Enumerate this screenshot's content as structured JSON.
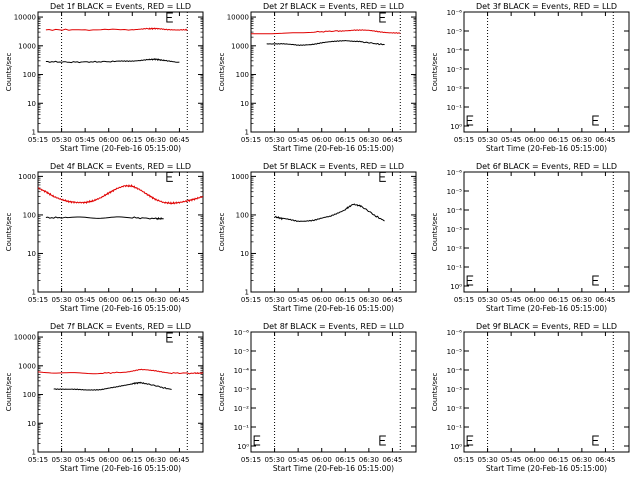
{
  "chart_data": [
    {
      "type": "line",
      "title": "Det 1f BLACK = Events, RED = LLD",
      "xlabel": "Start Time (20-Feb-16 05:15:00)",
      "ylabel": "Counts/sec",
      "x_tick_labels": [
        "05:15",
        "05:30",
        "05:45",
        "06:00",
        "06:15",
        "06:30",
        "06:45"
      ],
      "y_tick_labels": [
        "1",
        "10",
        "100",
        "1000",
        "10000"
      ],
      "ylim": [
        1,
        15000
      ],
      "log_y": true,
      "dotted_verticals_min": [
        15,
        95
      ],
      "markers": [
        {
          "x_min": 82,
          "y": 10000
        }
      ],
      "series": [
        {
          "color": "#e00000",
          "x_min": [
            5,
            30,
            60,
            70,
            75,
            80,
            90,
            95
          ],
          "y": [
            3600,
            3600,
            3700,
            3900,
            4000,
            3800,
            3600,
            3600
          ]
        },
        {
          "color": "#000000",
          "x_min": [
            5,
            20,
            35,
            50,
            60,
            70,
            75,
            80,
            90
          ],
          "y": [
            280,
            270,
            275,
            285,
            300,
            330,
            340,
            310,
            270
          ]
        }
      ]
    },
    {
      "type": "line",
      "title": "Det 2f BLACK = Events, RED = LLD",
      "xlabel": "Start Time (20-Feb-16 05:15:00)",
      "ylabel": "Counts/sec",
      "x_tick_labels": [
        "05:15",
        "05:30",
        "05:45",
        "06:00",
        "06:15",
        "06:30",
        "06:45"
      ],
      "y_tick_labels": [
        "1",
        "10",
        "100",
        "1000",
        "10000"
      ],
      "ylim": [
        1,
        15000
      ],
      "log_y": true,
      "dotted_verticals_min": [
        15,
        95
      ],
      "markers": [
        {
          "x_min": 82,
          "y": 10000
        }
      ],
      "series": [
        {
          "color": "#e00000",
          "x_min": [
            0,
            20,
            40,
            55,
            65,
            75,
            85,
            95
          ],
          "y": [
            2600,
            2700,
            3000,
            3300,
            3500,
            3400,
            3000,
            2700
          ]
        },
        {
          "color": "#000000",
          "x_min": [
            10,
            20,
            30,
            40,
            50,
            60,
            70,
            78,
            85
          ],
          "y": [
            1200,
            1150,
            1050,
            1150,
            1350,
            1550,
            1400,
            1200,
            1100
          ]
        }
      ]
    },
    {
      "type": "line",
      "title": "Det 3f BLACK = Events, RED = LLD",
      "xlabel": "Start Time (20-Feb-16 05:15:00)",
      "ylabel": "Counts/sec",
      "x_tick_labels": [
        "05:15",
        "05:30",
        "05:45",
        "06:00",
        "06:15",
        "06:30",
        "06:45"
      ],
      "y_tick_labels": [
        "10⁰",
        "10⁻¹",
        "10⁻²",
        "10⁻³",
        "10⁻⁴",
        "10⁻⁵",
        "10⁻⁶"
      ],
      "log_y": true,
      "dotted_verticals_min": [
        15,
        95
      ],
      "markers": [
        {
          "x_min": 2,
          "y": 0
        },
        {
          "x_min": 82,
          "y": 0
        }
      ],
      "series": []
    },
    {
      "type": "line",
      "title": "Det 4f BLACK = Events, RED = LLD",
      "xlabel": "Start Time (20-Feb-16 05:15:00)",
      "ylabel": "Counts/sec",
      "x_tick_labels": [
        "05:15",
        "05:30",
        "05:45",
        "06:00",
        "06:15",
        "06:30",
        "06:45"
      ],
      "y_tick_labels": [
        "1",
        "10",
        "100",
        "1000"
      ],
      "ylim": [
        1,
        1300
      ],
      "log_y": true,
      "dotted_verticals_min": [
        15,
        95
      ],
      "markers": [
        {
          "x_min": 82,
          "y": 1000
        }
      ],
      "series": [
        {
          "color": "#e00000",
          "x_min": [
            0,
            5,
            10,
            15,
            20,
            25,
            30,
            35,
            40,
            45,
            50,
            55,
            60,
            65,
            70,
            75,
            80,
            85,
            90,
            95,
            100,
            105
          ],
          "y": [
            500,
            400,
            300,
            250,
            220,
            210,
            210,
            230,
            280,
            370,
            480,
            570,
            560,
            450,
            330,
            250,
            210,
            200,
            210,
            230,
            260,
            300
          ]
        },
        {
          "color": "#000000",
          "x_min": [
            5,
            20,
            40,
            60,
            75,
            80
          ],
          "y": [
            85,
            85,
            85,
            85,
            80,
            80
          ]
        }
      ]
    },
    {
      "type": "line",
      "title": "Det 5f BLACK = Events, RED = LLD",
      "xlabel": "Start Time (20-Feb-16 05:15:00)",
      "ylabel": "Counts/sec",
      "x_tick_labels": [
        "05:15",
        "05:30",
        "05:45",
        "06:00",
        "06:15",
        "06:30",
        "06:45"
      ],
      "y_tick_labels": [
        "1",
        "10",
        "100",
        "1000"
      ],
      "ylim": [
        1,
        1300
      ],
      "log_y": true,
      "dotted_verticals_min": [
        15,
        95
      ],
      "markers": [
        {
          "x_min": 82,
          "y": 1000
        }
      ],
      "series": [
        {
          "color": "#000000",
          "x_min": [
            15,
            20,
            30,
            40,
            50,
            60,
            65,
            70,
            78,
            85
          ],
          "y": [
            90,
            80,
            70,
            72,
            90,
            140,
            190,
            170,
            100,
            70
          ]
        }
      ]
    },
    {
      "type": "line",
      "title": "Det 6f BLACK = Events, RED = LLD",
      "xlabel": "Start Time (20-Feb-16 05:15:00)",
      "ylabel": "Counts/sec",
      "x_tick_labels": [
        "05:15",
        "05:30",
        "05:45",
        "06:00",
        "06:15",
        "06:30",
        "06:45"
      ],
      "y_tick_labels": [
        "10⁰",
        "10⁻¹",
        "10⁻²",
        "10⁻³",
        "10⁻⁴",
        "10⁻⁵",
        "10⁻⁶"
      ],
      "log_y": true,
      "dotted_verticals_min": [
        15,
        95
      ],
      "markers": [
        {
          "x_min": 2,
          "y": 0
        },
        {
          "x_min": 82,
          "y": 0
        }
      ],
      "series": []
    },
    {
      "type": "line",
      "title": "Det 7f BLACK = Events, RED = LLD",
      "xlabel": "Start Time (20-Feb-16 05:15:00)",
      "ylabel": "Counts/sec",
      "x_tick_labels": [
        "05:15",
        "05:30",
        "05:45",
        "06:00",
        "06:15",
        "06:30",
        "06:45"
      ],
      "y_tick_labels": [
        "1",
        "10",
        "100",
        "1000",
        "10000"
      ],
      "ylim": [
        1,
        15000
      ],
      "log_y": true,
      "dotted_verticals_min": [
        15,
        95
      ],
      "markers": [
        {
          "x_min": 82,
          "y": 10000
        }
      ],
      "series": [
        {
          "color": "#e00000",
          "x_min": [
            0,
            20,
            40,
            55,
            65,
            75,
            85,
            100,
            105
          ],
          "y": [
            600,
            560,
            550,
            600,
            750,
            650,
            560,
            550,
            560
          ]
        },
        {
          "color": "#000000",
          "x_min": [
            10,
            20,
            30,
            40,
            50,
            60,
            65,
            70,
            78,
            85
          ],
          "y": [
            160,
            150,
            145,
            150,
            180,
            240,
            260,
            230,
            180,
            150
          ]
        }
      ]
    },
    {
      "type": "line",
      "title": "Det 8f BLACK = Events, RED = LLD",
      "xlabel": "Start Time (20-Feb-16 05:15:00)",
      "ylabel": "Counts/sec",
      "x_tick_labels": [
        "05:15",
        "05:30",
        "05:45",
        "06:00",
        "06:15",
        "06:30",
        "06:45"
      ],
      "y_tick_labels": [
        "10⁰",
        "10⁻¹",
        "10⁻²",
        "10⁻³",
        "10⁻⁴",
        "10⁻⁵",
        "10⁻⁶"
      ],
      "log_y": true,
      "dotted_verticals_min": [
        15,
        95
      ],
      "markers": [
        {
          "x_min": 2,
          "y": 0
        },
        {
          "x_min": 82,
          "y": 0
        }
      ],
      "series": []
    },
    {
      "type": "line",
      "title": "Det 9f BLACK = Events, RED = LLD",
      "xlabel": "Start Time (20-Feb-16 05:15:00)",
      "ylabel": "Counts/sec",
      "x_tick_labels": [
        "05:15",
        "05:30",
        "05:45",
        "06:00",
        "06:15",
        "06:30",
        "06:45"
      ],
      "y_tick_labels": [
        "10⁰",
        "10⁻¹",
        "10⁻²",
        "10⁻³",
        "10⁻⁴",
        "10⁻⁵",
        "10⁻⁶"
      ],
      "log_y": true,
      "dotted_verticals_min": [
        15,
        95
      ],
      "markers": [
        {
          "x_min": 2,
          "y": 0
        },
        {
          "x_min": 82,
          "y": 0
        }
      ],
      "series": []
    }
  ]
}
